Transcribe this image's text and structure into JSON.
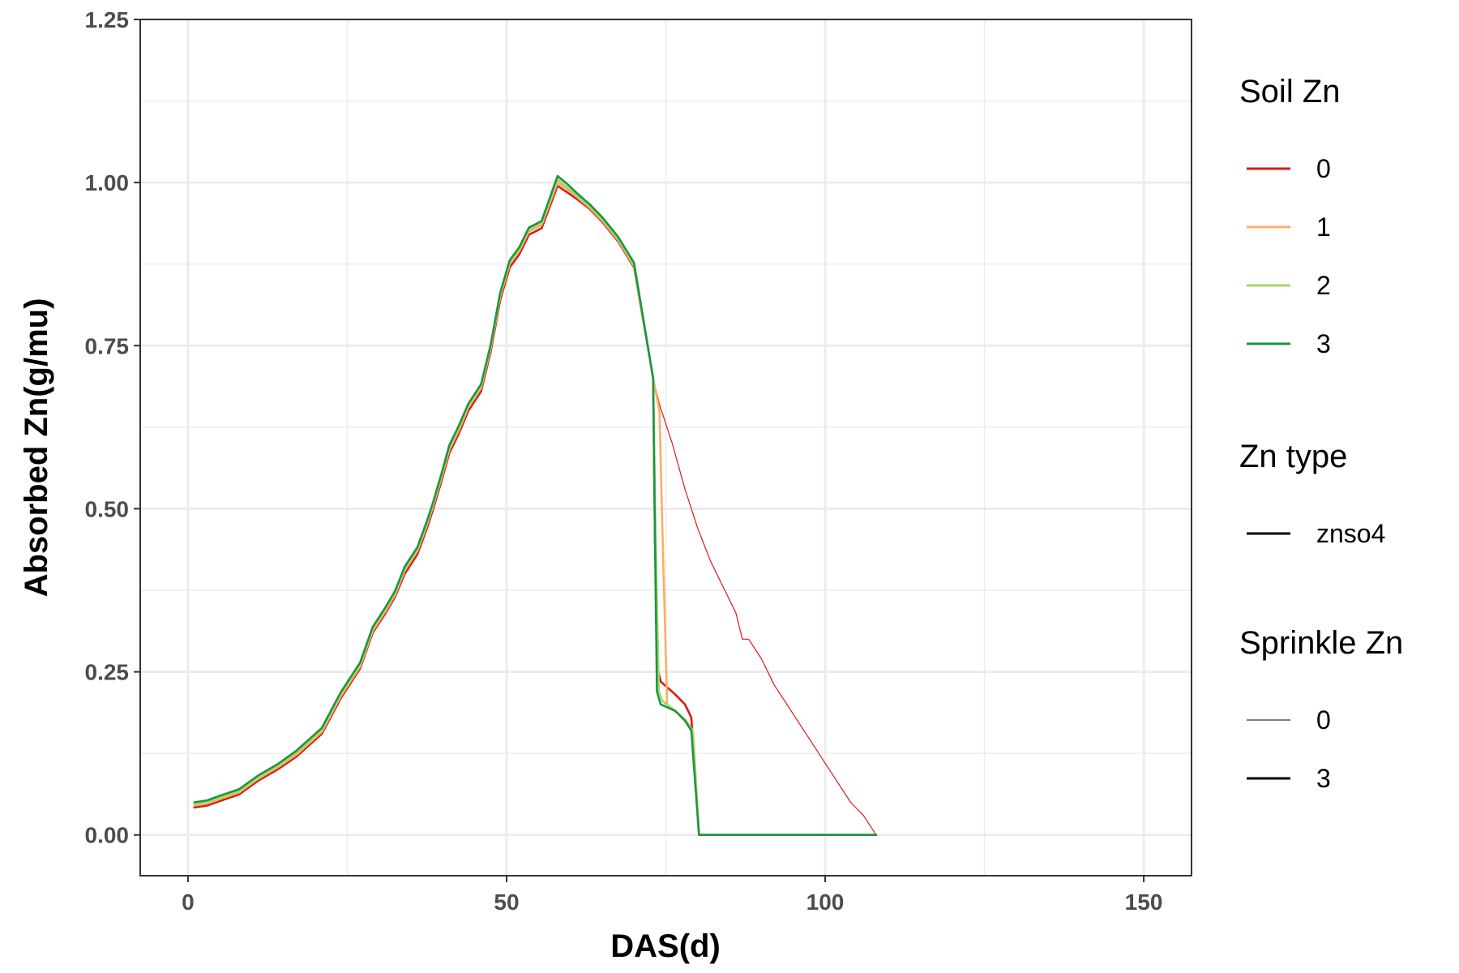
{
  "chart_data": {
    "type": "line",
    "xlabel": "DAS(d)",
    "ylabel": "Absorbed Zn(g/mu)",
    "xlim": [
      -7.5,
      157.5
    ],
    "ylim": [
      -0.0625,
      1.25
    ],
    "x_ticks": [
      "0",
      "50",
      "100",
      "150"
    ],
    "x_tick_values": [
      0,
      50,
      100,
      150
    ],
    "y_ticks": [
      "0.00",
      "0.25",
      "0.50",
      "0.75",
      "1.00",
      "1.25"
    ],
    "y_tick_values": [
      0,
      0.25,
      0.5,
      0.75,
      1.0,
      1.25
    ],
    "grid": true,
    "legend_position": "right",
    "legend": [
      {
        "title": "Soil Zn",
        "entries": [
          {
            "label": "0",
            "color": "#d7191c"
          },
          {
            "label": "1",
            "color": "#fdae61"
          },
          {
            "label": "2",
            "color": "#a6d96a"
          },
          {
            "label": "3",
            "color": "#1a9641"
          }
        ]
      },
      {
        "title": "Zn type",
        "entries": [
          {
            "label": "znso4",
            "color": "#000000"
          }
        ]
      },
      {
        "title": "Sprinkle Zn",
        "entries": [
          {
            "label": "0",
            "color": "#000000",
            "thin": true
          },
          {
            "label": "3",
            "color": "#000000",
            "thin": false
          }
        ]
      }
    ],
    "series": [
      {
        "soil_zn": "0",
        "sprinkle_zn": "0",
        "color": "#d7191c",
        "thin": true,
        "x": [
          73,
          74,
          76,
          78,
          80,
          82,
          84,
          86,
          87,
          88,
          90,
          92,
          94,
          96,
          98,
          100,
          102,
          104,
          106,
          107,
          108
        ],
        "y": [
          0.7,
          0.66,
          0.6,
          0.53,
          0.47,
          0.42,
          0.38,
          0.34,
          0.3,
          0.3,
          0.27,
          0.23,
          0.2,
          0.17,
          0.14,
          0.11,
          0.08,
          0.05,
          0.03,
          0.015,
          0.0
        ]
      },
      {
        "soil_zn": "0",
        "sprinkle_zn": "3",
        "color": "#d7191c",
        "thin": false,
        "x": [
          1,
          3,
          5,
          8,
          11,
          14,
          17,
          21,
          24,
          27,
          29,
          31,
          32.5,
          34,
          36,
          37.5,
          38.5,
          40,
          41,
          42.5,
          44,
          46,
          47.5,
          49,
          50.5,
          52,
          53.5,
          55.5,
          58,
          59.5,
          61,
          63,
          65,
          67.5,
          70,
          73,
          73.3,
          73.8,
          74.2,
          76.5,
          78,
          79,
          80.2,
          81,
          108
        ],
        "y": [
          0.042,
          0.045,
          0.052,
          0.062,
          0.083,
          0.1,
          0.12,
          0.155,
          0.21,
          0.255,
          0.31,
          0.34,
          0.365,
          0.4,
          0.43,
          0.47,
          0.5,
          0.55,
          0.585,
          0.615,
          0.65,
          0.68,
          0.74,
          0.82,
          0.87,
          0.89,
          0.92,
          0.93,
          0.995,
          0.985,
          0.975,
          0.96,
          0.94,
          0.91,
          0.87,
          0.7,
          0.45,
          0.25,
          0.235,
          0.215,
          0.2,
          0.18,
          0.0,
          0.0,
          0.0
        ]
      },
      {
        "soil_zn": "1",
        "sprinkle_zn": "3",
        "color": "#fdae61",
        "thin": false,
        "x": [
          1,
          3,
          5,
          8,
          11,
          14,
          17,
          21,
          24,
          27,
          29,
          31,
          32.5,
          34,
          36,
          37.5,
          38.5,
          40,
          41,
          42.5,
          44,
          46,
          47.5,
          49,
          50.5,
          52,
          53.5,
          55.5,
          58,
          59.5,
          61,
          63,
          65,
          67.5,
          70,
          73,
          74,
          74.5,
          75.2,
          77,
          78.5,
          79.3,
          80.2,
          108
        ],
        "y": [
          0.045,
          0.048,
          0.055,
          0.065,
          0.086,
          0.103,
          0.123,
          0.158,
          0.213,
          0.258,
          0.313,
          0.343,
          0.368,
          0.405,
          0.435,
          0.475,
          0.505,
          0.555,
          0.59,
          0.62,
          0.655,
          0.685,
          0.745,
          0.825,
          0.875,
          0.895,
          0.925,
          0.935,
          1.0,
          0.99,
          0.978,
          0.962,
          0.942,
          0.912,
          0.872,
          0.7,
          0.65,
          0.45,
          0.2,
          0.185,
          0.17,
          0.155,
          0.0,
          0.0
        ]
      },
      {
        "soil_zn": "2",
        "sprinkle_zn": "3",
        "color": "#a6d96a",
        "thin": false,
        "x": [
          1,
          3,
          5,
          8,
          11,
          14,
          17,
          21,
          24,
          27,
          29,
          31,
          32.5,
          34,
          36,
          37.5,
          38.5,
          40,
          41,
          42.5,
          44,
          46,
          47.5,
          49,
          50.5,
          52,
          53.5,
          55.5,
          58,
          59.5,
          61,
          63,
          65,
          67.5,
          70,
          73,
          73.4,
          73.9,
          74.5,
          76.5,
          78.2,
          79.2,
          80.2,
          108
        ],
        "y": [
          0.047,
          0.05,
          0.057,
          0.067,
          0.088,
          0.105,
          0.126,
          0.161,
          0.216,
          0.261,
          0.316,
          0.346,
          0.371,
          0.408,
          0.438,
          0.478,
          0.508,
          0.558,
          0.594,
          0.624,
          0.658,
          0.688,
          0.748,
          0.828,
          0.878,
          0.898,
          0.928,
          0.938,
          1.005,
          0.993,
          0.98,
          0.964,
          0.944,
          0.914,
          0.874,
          0.7,
          0.45,
          0.22,
          0.205,
          0.19,
          0.175,
          0.16,
          0.0,
          0.0
        ]
      },
      {
        "soil_zn": "3",
        "sprinkle_zn": "3",
        "color": "#1a9641",
        "thin": false,
        "x": [
          1,
          3,
          5,
          8,
          11,
          14,
          17,
          21,
          24,
          27,
          29,
          31,
          32.5,
          34,
          36,
          37.5,
          38.5,
          40,
          41,
          42.5,
          44,
          46,
          47.5,
          49,
          50.5,
          52,
          53.5,
          55.5,
          58,
          59.5,
          61,
          63,
          65,
          67.5,
          70,
          73,
          73.3,
          73.6,
          74.2,
          76.5,
          78,
          79,
          80.2,
          108
        ],
        "y": [
          0.05,
          0.053,
          0.06,
          0.07,
          0.091,
          0.108,
          0.129,
          0.164,
          0.219,
          0.264,
          0.319,
          0.349,
          0.374,
          0.411,
          0.441,
          0.481,
          0.511,
          0.561,
          0.597,
          0.627,
          0.661,
          0.691,
          0.751,
          0.831,
          0.881,
          0.901,
          0.931,
          0.941,
          1.01,
          0.998,
          0.984,
          0.967,
          0.947,
          0.917,
          0.877,
          0.7,
          0.45,
          0.22,
          0.2,
          0.19,
          0.175,
          0.16,
          0.0,
          0.0
        ]
      }
    ]
  }
}
